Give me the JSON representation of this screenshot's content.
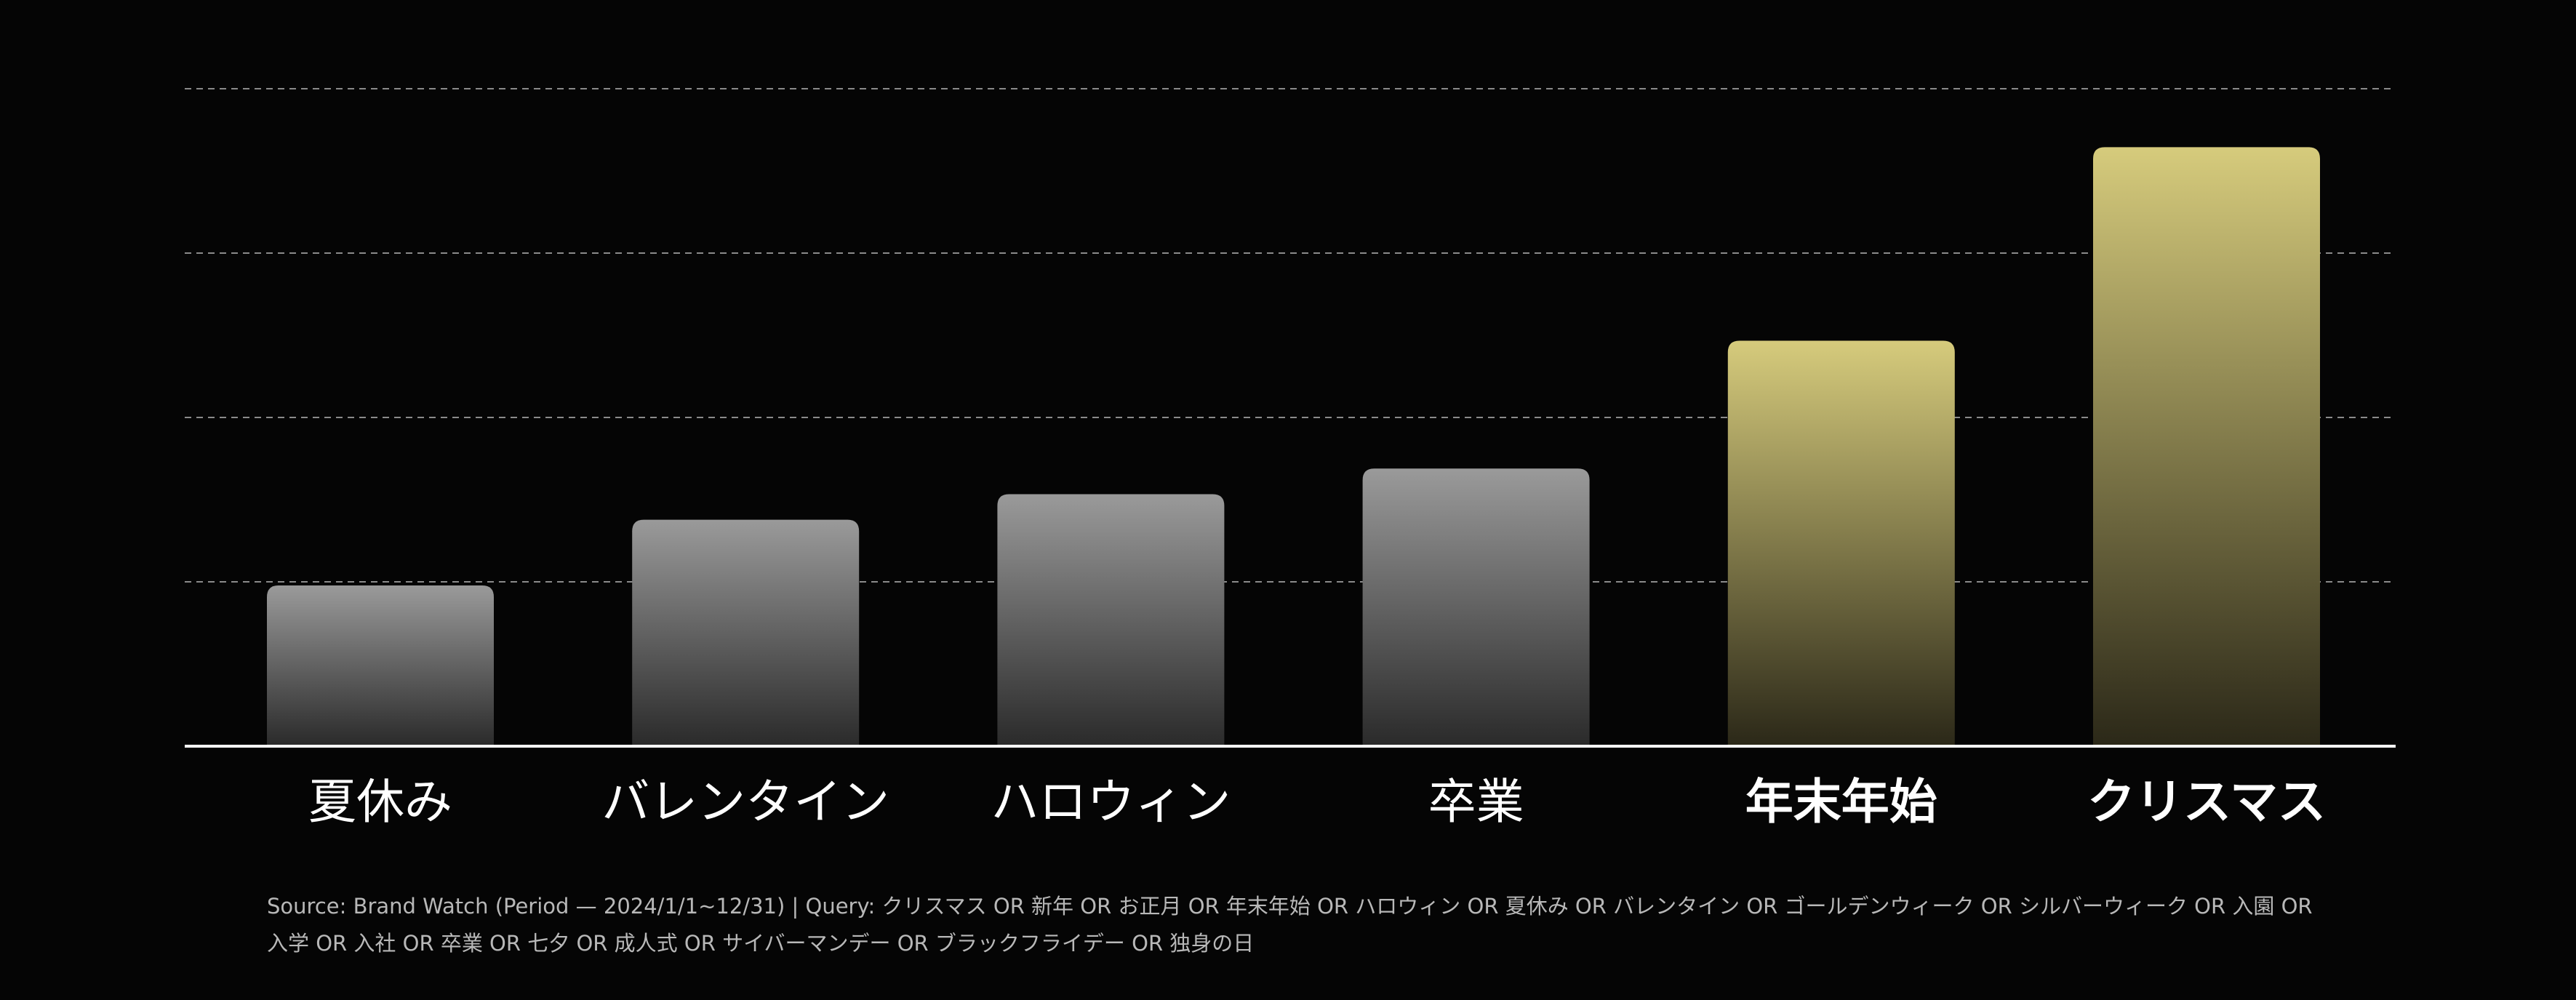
{
  "chart_data": {
    "type": "bar",
    "categories": [
      "夏休み",
      "バレンタイン",
      "ハロウィン",
      "卒業",
      "年末年始",
      "クリスマス"
    ],
    "values": [
      22,
      31,
      34.5,
      38,
      55.5,
      82
    ],
    "highlight": [
      false,
      false,
      false,
      false,
      true,
      true
    ],
    "title": "",
    "xlabel": "",
    "ylabel": "",
    "ylim": [
      0,
      90
    ],
    "grid": true,
    "colors": {
      "normal_top": "#9a9a9a",
      "normal_bottom": "#2a2a2a",
      "highlight_top": "#d6cb7c",
      "highlight_bottom": "#2b2818",
      "grid": "#8a8a8a",
      "axis": "#ffffff",
      "label": "#ffffff"
    }
  },
  "footer": {
    "source_line1": "Source: Brand Watch (Period — 2024/1/1~12/31)  |  Query: クリスマス OR 新年 OR お正月 OR 年末年始 OR ハロウィン OR 夏休み OR バレンタイン OR ゴールデンウィーク OR シルバーウィーク OR 入園 OR",
    "source_line2": "入学 OR 入社 OR 卒業 OR 七夕 OR 成人式 OR サイバーマンデー OR ブラックフライデー OR 独身の日"
  }
}
